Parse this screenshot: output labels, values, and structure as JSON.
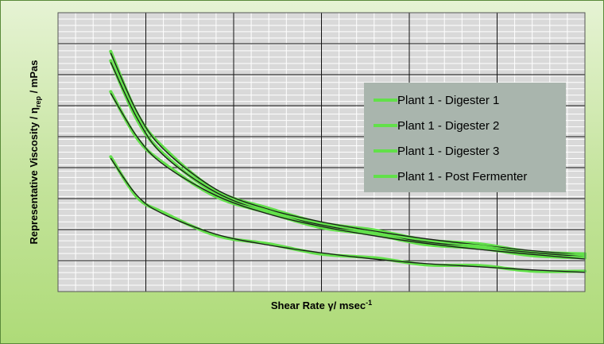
{
  "chart_data": {
    "type": "line",
    "title": "",
    "xlabel": "Shear Rate γ/ msec",
    "xlabel_superscript": "-1",
    "ylabel_main": "Representative Viscosity / η",
    "ylabel_subscript": "rep",
    "ylabel_unit": " / mPas",
    "xlim": [
      0,
      10
    ],
    "ylim": [
      0,
      9
    ],
    "grid": true,
    "legend_position": "top-right",
    "line_color": "#62e04a",
    "fit_color": "#1a1a1a",
    "series": [
      {
        "name": "Plant 1 - Digester 1",
        "x": [
          1.0,
          1.5,
          2.0,
          3.0,
          4.0,
          5.0,
          6.0,
          7.0,
          8.0,
          9.0,
          10.0
        ],
        "values": [
          7.7,
          5.8,
          4.6,
          3.3,
          2.65,
          2.25,
          1.95,
          1.7,
          1.5,
          1.32,
          1.18
        ]
      },
      {
        "name": "Plant 1 - Digester 2",
        "x": [
          1.0,
          1.5,
          2.0,
          3.0,
          4.0,
          5.0,
          6.0,
          7.0,
          8.0,
          9.0,
          10.0
        ],
        "values": [
          7.4,
          5.6,
          4.4,
          3.2,
          2.55,
          2.15,
          1.85,
          1.6,
          1.42,
          1.26,
          1.12
        ]
      },
      {
        "name": "Plant 1 - Digester 3",
        "x": [
          1.0,
          1.5,
          2.0,
          3.0,
          4.0,
          5.0,
          6.0,
          7.0,
          8.0,
          9.0,
          10.0
        ],
        "values": [
          6.4,
          5.0,
          4.1,
          3.1,
          2.5,
          2.1,
          1.8,
          1.55,
          1.36,
          1.2,
          1.05
        ]
      },
      {
        "name": "Plant 1 - Post Fermenter",
        "x": [
          1.0,
          1.5,
          2.0,
          3.0,
          4.0,
          5.0,
          6.0,
          7.0,
          8.0,
          9.0,
          10.0
        ],
        "values": [
          4.3,
          3.1,
          2.5,
          1.85,
          1.5,
          1.25,
          1.05,
          0.9,
          0.8,
          0.7,
          0.62
        ]
      }
    ]
  }
}
